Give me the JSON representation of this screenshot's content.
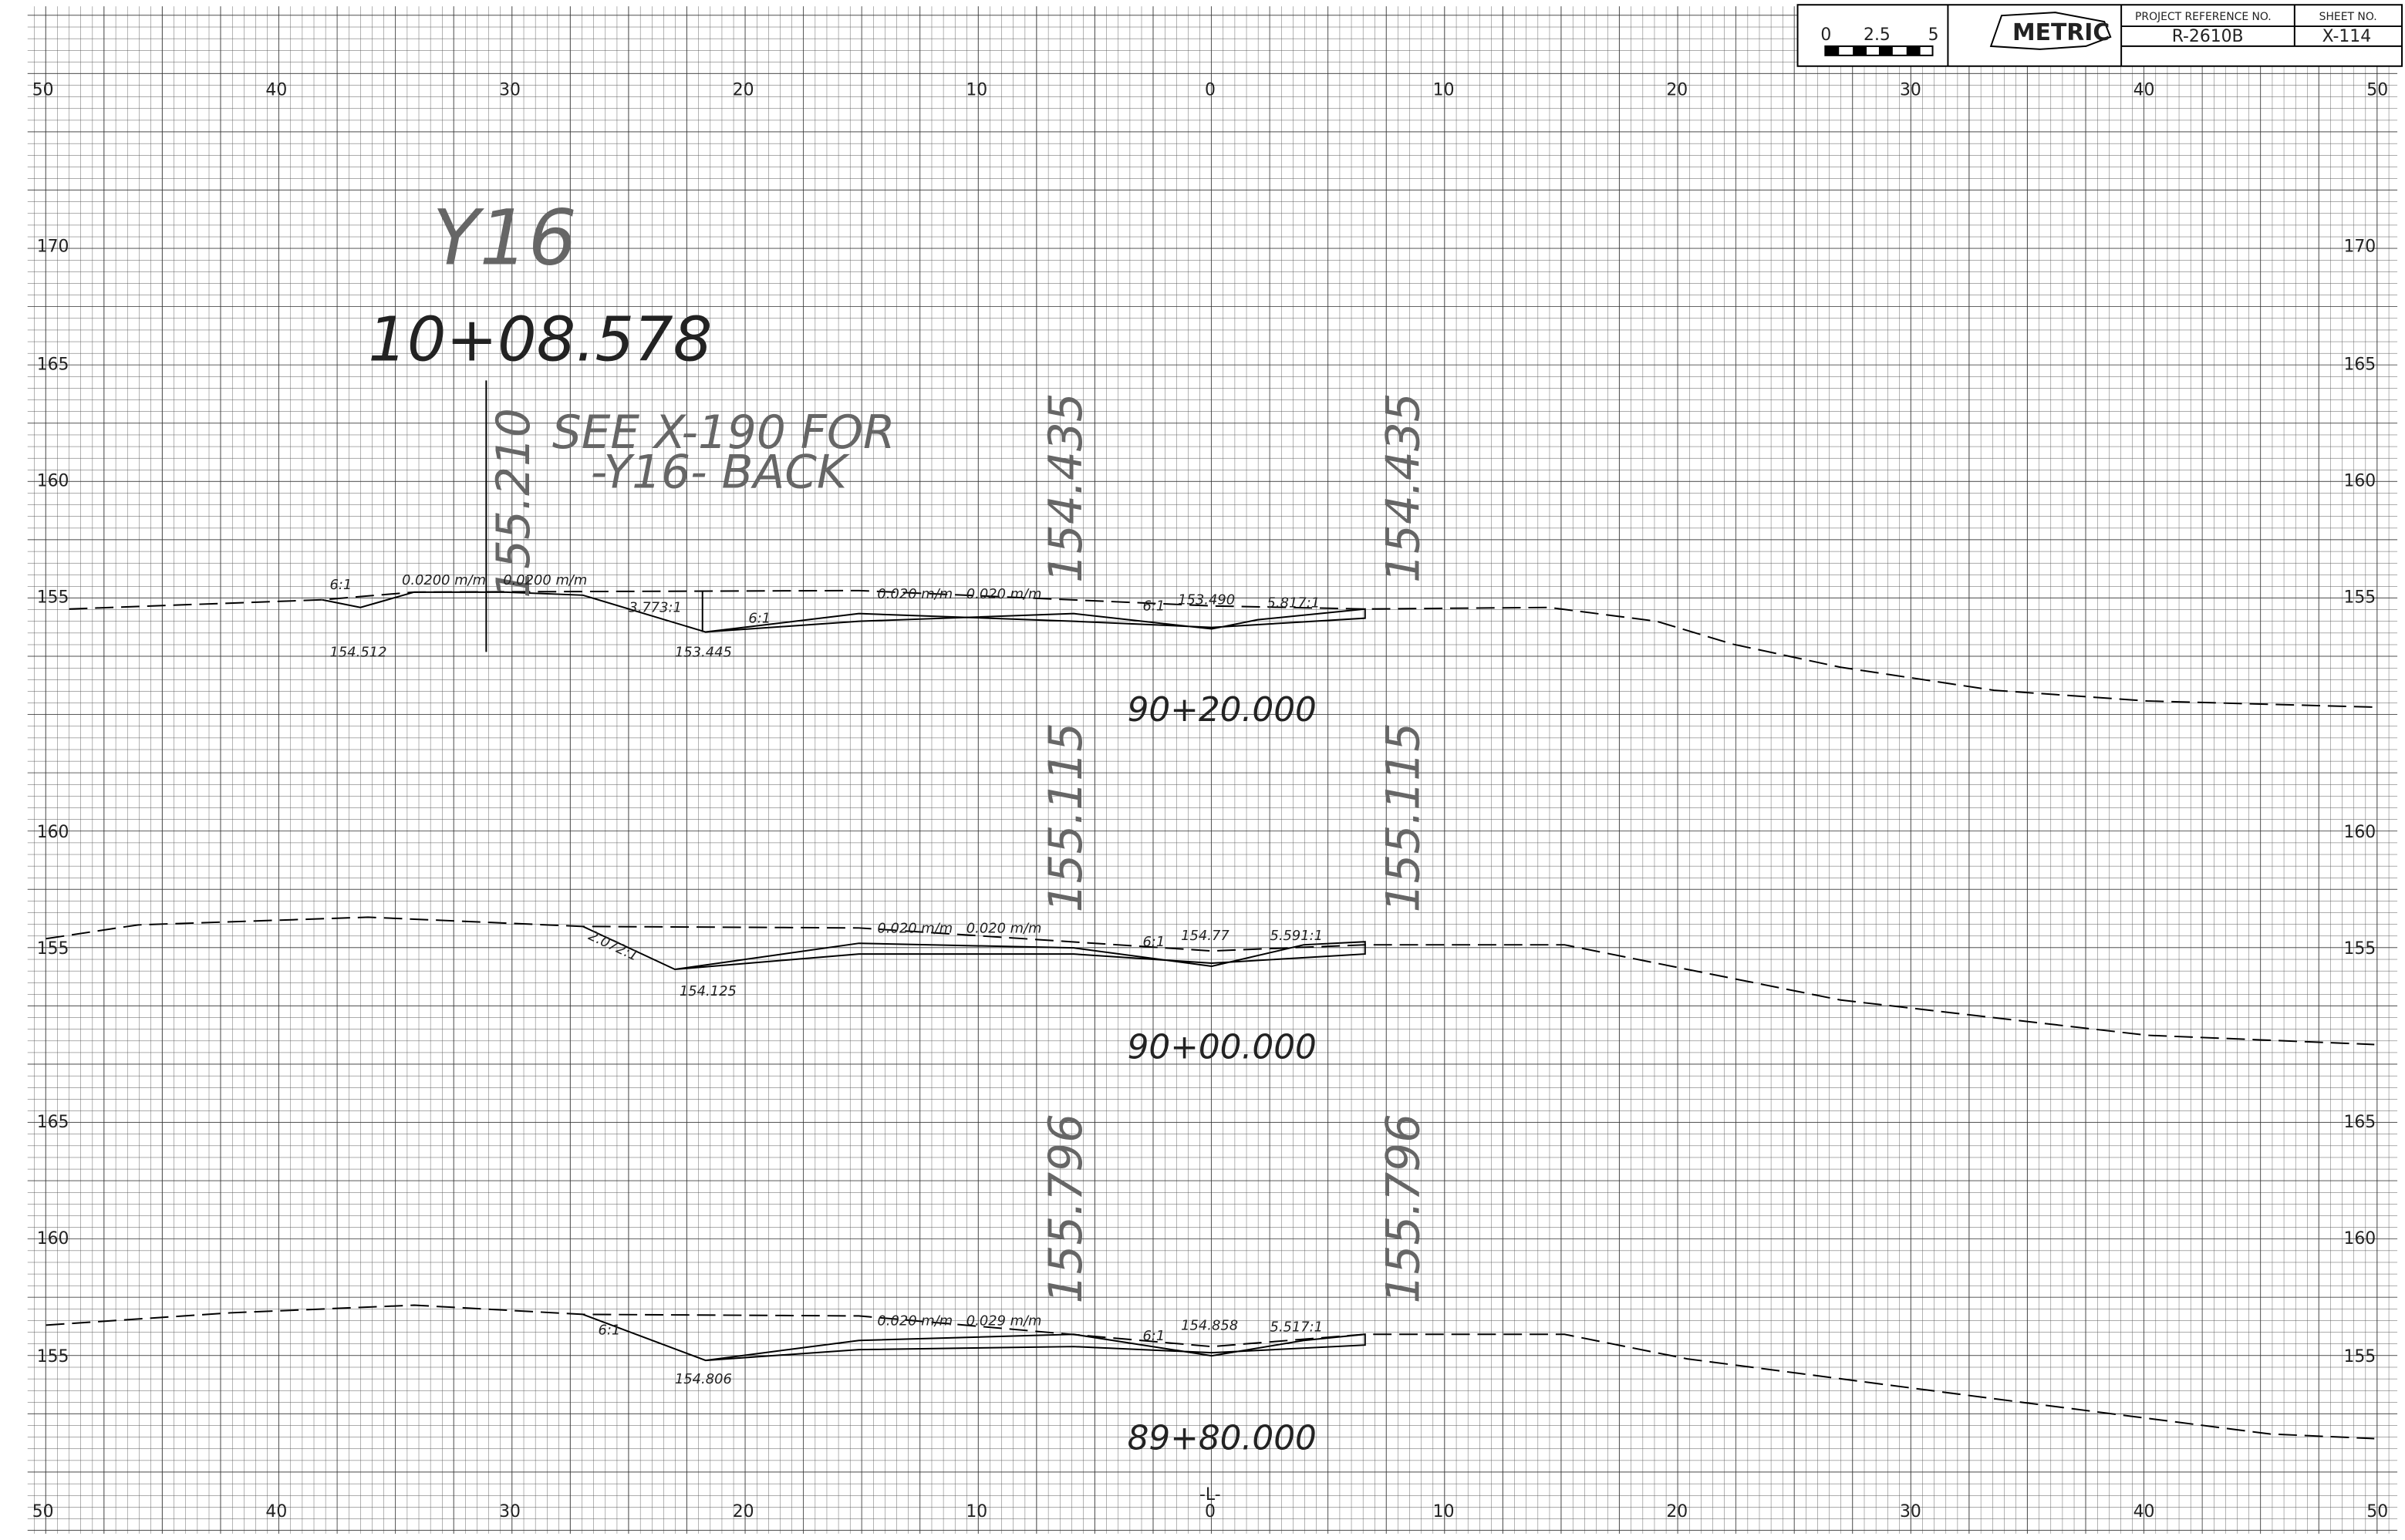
{
  "title_block": {
    "scale": [
      "0",
      "2.5",
      "5"
    ],
    "logo": "METRIC",
    "project_reference_label": "PROJECT REFERENCE NO.",
    "project_reference": "R-2610B",
    "sheet_label": "SHEET NO.",
    "sheet": "X-114"
  },
  "offsets_top": [
    "50",
    "40",
    "30",
    "20",
    "10",
    "0",
    "10",
    "20",
    "30",
    "40",
    "50"
  ],
  "offsets_bottom": [
    "50",
    "40",
    "30",
    "20",
    "10",
    "0",
    "10",
    "20",
    "30",
    "40",
    "50"
  ],
  "centerline_label": "-L-",
  "elevations_left": [
    "170",
    "165",
    "160",
    "155",
    "160",
    "155",
    "165",
    "160",
    "155"
  ],
  "elevations_right": [
    "170",
    "165",
    "160",
    "155",
    "160",
    "155",
    "165",
    "160",
    "155"
  ],
  "sections": [
    {
      "road": "Y16",
      "road_station": "10+08.578",
      "road_elevation": "155.210",
      "note": [
        "SEE  X-190  FOR",
        "-Y16-  BACK"
      ],
      "left_elevation": "154.435",
      "right_elevation": "154.435",
      "labels": [
        "6:1",
        "0.0200 m/m",
        "0.0200 m/m",
        "3.773:1",
        "6:1",
        "0.020 m/m",
        "0.020 m/m",
        "6:1",
        "153.490",
        "5.817:1",
        "154.512",
        "153.445"
      ],
      "station": "90+20.000"
    },
    {
      "left_elevation": "155.115",
      "right_elevation": "155.115",
      "labels": [
        "2.072:1",
        "0.020 m/m",
        "0.020 m/m",
        "6:1",
        "154.77",
        "5.591:1",
        "154.125"
      ],
      "station": "90+00.000"
    },
    {
      "left_elevation": "155.796",
      "right_elevation": "155.796",
      "labels": [
        "6:1",
        "0.020 m/m",
        "0.029 m/m",
        "6:1",
        "154.858",
        "5.517:1",
        "154.806"
      ],
      "station": "89+80.000"
    }
  ]
}
